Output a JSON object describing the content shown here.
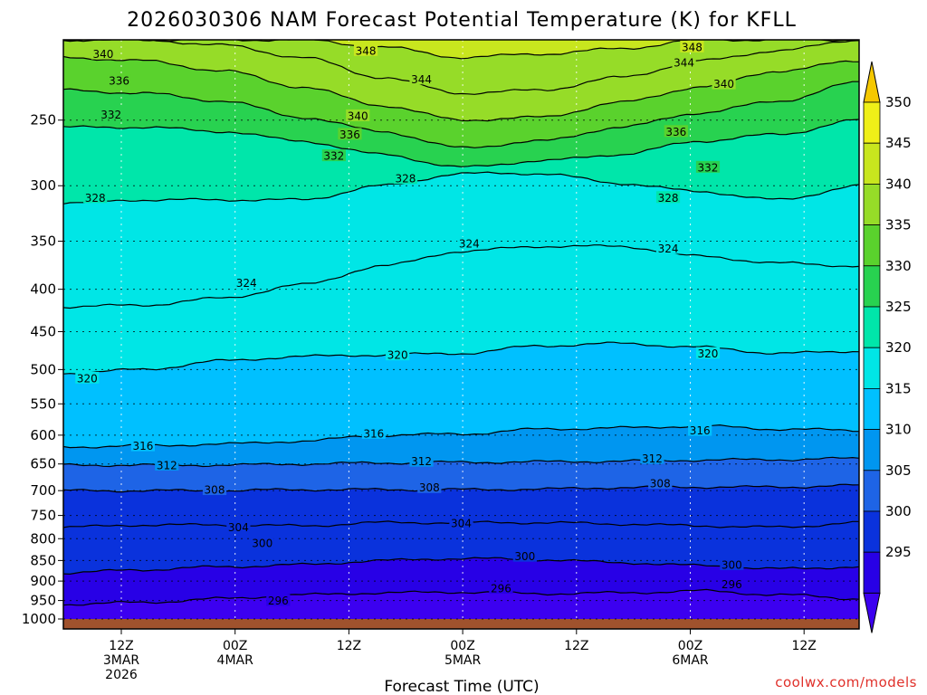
{
  "chart_data": {
    "type": "heatmap",
    "title": "2026030306 NAM Forecast Potential Temperature (K) for KFLL",
    "xlabel": "Forecast Time (UTC)",
    "ylabel": "",
    "credit": "coolwx.com/models",
    "y_scale": "log-pressure",
    "y_ticks": [
      250,
      300,
      350,
      400,
      450,
      500,
      550,
      600,
      650,
      700,
      750,
      800,
      850,
      900,
      950,
      1000
    ],
    "ylim": [
      1000,
      200
    ],
    "x_ticks": [
      {
        "line1": "12Z",
        "line2": "3MAR",
        "line3": "2026"
      },
      {
        "line1": "00Z",
        "line2": "4MAR",
        "line3": ""
      },
      {
        "line1": "12Z",
        "line2": "",
        "line3": ""
      },
      {
        "line1": "00Z",
        "line2": "5MAR",
        "line3": ""
      },
      {
        "line1": "12Z",
        "line2": "",
        "line3": ""
      },
      {
        "line1": "00Z",
        "line2": "6MAR",
        "line3": ""
      },
      {
        "line1": "12Z",
        "line2": "",
        "line3": ""
      }
    ],
    "colorbar": {
      "ticks": [
        350,
        345,
        340,
        335,
        330,
        325,
        320,
        315,
        310,
        305,
        300,
        295
      ],
      "colors": [
        "#f0f018",
        "#c8e61e",
        "#96dc28",
        "#5ad22d",
        "#28d250",
        "#00e6aa",
        "#00e6e6",
        "#00c0ff",
        "#0096f0",
        "#1e64e6",
        "#0a32dc",
        "#2800e6"
      ],
      "top_color": "#f5c800",
      "bottom_color": "#3c00f0"
    },
    "contour_interval": 4,
    "contours": [
      {
        "value": 296,
        "pressure": [
          960,
          955,
          945,
          935,
          930,
          928,
          932,
          930,
          925,
          935,
          945
        ]
      },
      {
        "value": 300,
        "pressure": [
          880,
          872,
          865,
          860,
          850,
          845,
          848,
          855,
          862,
          870,
          865
        ]
      },
      {
        "value": 304,
        "pressure": [
          775,
          770,
          770,
          772,
          765,
          765,
          765,
          768,
          772,
          775,
          765
        ]
      },
      {
        "value": 308,
        "pressure": [
          700,
          700,
          700,
          698,
          698,
          698,
          697,
          694,
          693,
          693,
          690
        ]
      },
      {
        "value": 312,
        "pressure": [
          652,
          652,
          652,
          650,
          648,
          647,
          646,
          645,
          643,
          642,
          640
        ]
      },
      {
        "value": 316,
        "pressure": [
          620,
          618,
          615,
          610,
          600,
          598,
          590,
          588,
          585,
          590,
          592
        ]
      },
      {
        "value": 320,
        "pressure": [
          505,
          500,
          488,
          482,
          480,
          478,
          468,
          465,
          470,
          478,
          475
        ]
      },
      {
        "value": 324,
        "pressure": [
          420,
          418,
          410,
          395,
          375,
          360,
          355,
          355,
          365,
          372,
          375
        ]
      },
      {
        "value": 328,
        "pressure": [
          315,
          312,
          312,
          312,
          300,
          290,
          290,
          298,
          305,
          312,
          300
        ]
      },
      {
        "value": 332,
        "pressure": [
          255,
          255,
          258,
          265,
          275,
          285,
          280,
          275,
          265,
          260,
          250
        ]
      },
      {
        "value": 336,
        "pressure": [
          230,
          232,
          237,
          248,
          258,
          270,
          265,
          255,
          245,
          237,
          225
        ]
      },
      {
        "value": 340,
        "pressure": [
          210,
          212,
          218,
          228,
          240,
          250,
          248,
          238,
          228,
          218,
          212
        ]
      },
      {
        "value": 344,
        "pressure": [
          200,
          200,
          203,
          210,
          222,
          232,
          230,
          222,
          212,
          206,
          200
        ]
      },
      {
        "value": 348,
        "pressure": [
          200,
          200,
          200,
          200,
          204,
          210,
          208,
          205,
          200,
          200,
          200
        ]
      }
    ],
    "contour_labels": [
      {
        "value": "340",
        "t": 0.05,
        "p": 208
      },
      {
        "value": "336",
        "t": 0.07,
        "p": 224
      },
      {
        "value": "332",
        "t": 0.06,
        "p": 246
      },
      {
        "value": "328",
        "t": 0.04,
        "p": 310
      },
      {
        "value": "348",
        "t": 0.38,
        "p": 206
      },
      {
        "value": "344",
        "t": 0.45,
        "p": 223
      },
      {
        "value": "340",
        "t": 0.37,
        "p": 247
      },
      {
        "value": "336",
        "t": 0.36,
        "p": 260
      },
      {
        "value": "332",
        "t": 0.34,
        "p": 276
      },
      {
        "value": "328",
        "t": 0.43,
        "p": 294
      },
      {
        "value": "324",
        "t": 0.51,
        "p": 352
      },
      {
        "value": "324",
        "t": 0.23,
        "p": 393
      },
      {
        "value": "320",
        "t": 0.42,
        "p": 480
      },
      {
        "value": "320",
        "t": 0.03,
        "p": 512
      },
      {
        "value": "316",
        "t": 0.39,
        "p": 597
      },
      {
        "value": "316",
        "t": 0.8,
        "p": 592
      },
      {
        "value": "316",
        "t": 0.1,
        "p": 618
      },
      {
        "value": "312",
        "t": 0.13,
        "p": 652
      },
      {
        "value": "312",
        "t": 0.45,
        "p": 645
      },
      {
        "value": "312",
        "t": 0.74,
        "p": 640
      },
      {
        "value": "308",
        "t": 0.19,
        "p": 698
      },
      {
        "value": "308",
        "t": 0.46,
        "p": 694
      },
      {
        "value": "308",
        "t": 0.75,
        "p": 686
      },
      {
        "value": "304",
        "t": 0.22,
        "p": 775
      },
      {
        "value": "304",
        "t": 0.5,
        "p": 766
      },
      {
        "value": "300",
        "t": 0.25,
        "p": 810
      },
      {
        "value": "300",
        "t": 0.58,
        "p": 840
      },
      {
        "value": "300",
        "t": 0.84,
        "p": 860
      },
      {
        "value": "296",
        "t": 0.27,
        "p": 950
      },
      {
        "value": "296",
        "t": 0.55,
        "p": 918
      },
      {
        "value": "296",
        "t": 0.84,
        "p": 908
      },
      {
        "value": "344",
        "t": 0.78,
        "p": 213
      },
      {
        "value": "348",
        "t": 0.79,
        "p": 204
      },
      {
        "value": "340",
        "t": 0.83,
        "p": 226
      },
      {
        "value": "336",
        "t": 0.77,
        "p": 258
      },
      {
        "value": "332",
        "t": 0.81,
        "p": 285
      },
      {
        "value": "328",
        "t": 0.76,
        "p": 310
      },
      {
        "value": "324",
        "t": 0.76,
        "p": 357
      },
      {
        "value": "320",
        "t": 0.81,
        "p": 478
      }
    ]
  }
}
